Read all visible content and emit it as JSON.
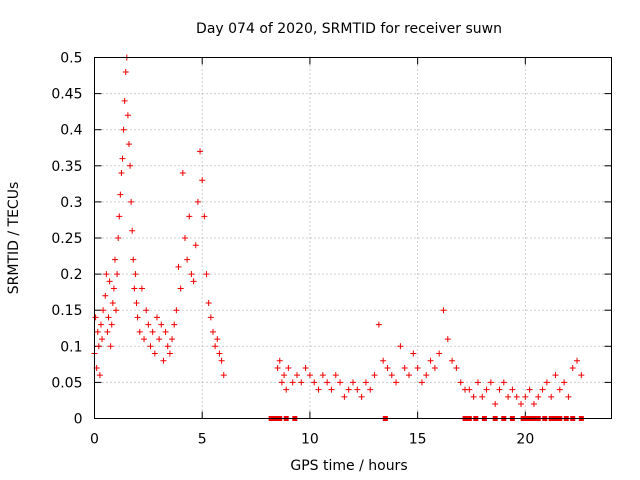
{
  "chart_data": {
    "type": "scatter",
    "title": "Day 074 of 2020, SRMTID for receiver suwn",
    "xlabel": "GPS time / hours",
    "ylabel": "SRMTID / TECUs",
    "xlim": [
      0,
      24
    ],
    "ylim": [
      0,
      0.5
    ],
    "xticks": [
      0,
      5,
      10,
      15,
      20
    ],
    "xtick_labels": [
      "0",
      "5",
      "10",
      "15",
      "20"
    ],
    "yticks": [
      0,
      0.05,
      0.1,
      0.15,
      0.2,
      0.25,
      0.3,
      0.35,
      0.4,
      0.45,
      0.5
    ],
    "ytick_labels": [
      "0",
      "0.05",
      "0.1",
      "0.15",
      "0.2",
      "0.25",
      "0.3",
      "0.35",
      "0.4",
      "0.45",
      "0.5"
    ],
    "grid": true,
    "series": [
      {
        "name": "SRMTID",
        "marker": "plus",
        "color": "#ee0000",
        "x": [
          0.0,
          0.05,
          0.1,
          0.15,
          0.2,
          0.25,
          0.3,
          0.35,
          0.4,
          0.5,
          0.55,
          0.6,
          0.65,
          0.7,
          0.75,
          0.8,
          0.85,
          0.9,
          0.95,
          1.0,
          1.05,
          1.1,
          1.15,
          1.2,
          1.25,
          1.3,
          1.35,
          1.4,
          1.45,
          1.5,
          1.55,
          1.6,
          1.65,
          1.7,
          1.75,
          1.8,
          1.85,
          1.9,
          1.95,
          2.0,
          2.1,
          2.2,
          2.3,
          2.4,
          2.5,
          2.6,
          2.7,
          2.8,
          2.9,
          3.0,
          3.1,
          3.2,
          3.3,
          3.4,
          3.5,
          3.6,
          3.7,
          3.8,
          3.9,
          4.0,
          4.1,
          4.2,
          4.3,
          4.4,
          4.5,
          4.6,
          4.7,
          4.8,
          4.9,
          5.0,
          5.1,
          5.2,
          5.3,
          5.4,
          5.5,
          5.6,
          5.7,
          5.8,
          5.9,
          6.0,
          8.5,
          8.6,
          8.7,
          8.8,
          8.9,
          9.0,
          9.2,
          9.4,
          9.6,
          9.8,
          10.0,
          10.2,
          10.4,
          10.6,
          10.8,
          11.0,
          11.2,
          11.4,
          11.6,
          11.8,
          12.0,
          12.2,
          12.4,
          12.6,
          12.8,
          13.0,
          13.2,
          13.4,
          13.6,
          13.8,
          14.0,
          14.2,
          14.4,
          14.6,
          14.8,
          15.0,
          15.2,
          15.4,
          15.6,
          15.8,
          16.0,
          16.2,
          16.4,
          16.6,
          16.8,
          17.0,
          17.2,
          17.4,
          17.6,
          17.8,
          18.0,
          18.2,
          18.4,
          18.6,
          18.8,
          19.0,
          19.2,
          19.4,
          19.6,
          19.8,
          20.0,
          20.2,
          20.4,
          20.6,
          20.8,
          21.0,
          21.2,
          21.4,
          21.6,
          21.8,
          22.0,
          22.2,
          22.4,
          22.6
        ],
        "y": [
          0.09,
          0.14,
          0.07,
          0.12,
          0.1,
          0.06,
          0.13,
          0.11,
          0.15,
          0.17,
          0.2,
          0.12,
          0.14,
          0.19,
          0.1,
          0.13,
          0.16,
          0.18,
          0.22,
          0.15,
          0.2,
          0.25,
          0.28,
          0.31,
          0.34,
          0.36,
          0.4,
          0.44,
          0.48,
          0.5,
          0.42,
          0.38,
          0.35,
          0.3,
          0.26,
          0.22,
          0.18,
          0.2,
          0.16,
          0.14,
          0.12,
          0.18,
          0.11,
          0.15,
          0.13,
          0.1,
          0.12,
          0.09,
          0.14,
          0.11,
          0.13,
          0.08,
          0.12,
          0.1,
          0.09,
          0.11,
          0.13,
          0.15,
          0.21,
          0.18,
          0.34,
          0.25,
          0.22,
          0.28,
          0.2,
          0.19,
          0.24,
          0.3,
          0.37,
          0.33,
          0.28,
          0.2,
          0.16,
          0.14,
          0.12,
          0.1,
          0.11,
          0.09,
          0.08,
          0.06,
          0.07,
          0.08,
          0.05,
          0.06,
          0.04,
          0.07,
          0.05,
          0.06,
          0.05,
          0.07,
          0.06,
          0.05,
          0.04,
          0.06,
          0.05,
          0.04,
          0.06,
          0.05,
          0.03,
          0.04,
          0.05,
          0.04,
          0.03,
          0.05,
          0.04,
          0.06,
          0.13,
          0.08,
          0.07,
          0.06,
          0.05,
          0.1,
          0.07,
          0.06,
          0.09,
          0.07,
          0.05,
          0.06,
          0.08,
          0.07,
          0.09,
          0.15,
          0.11,
          0.08,
          0.07,
          0.05,
          0.04,
          0.04,
          0.03,
          0.05,
          0.03,
          0.04,
          0.05,
          0.02,
          0.04,
          0.05,
          0.03,
          0.04,
          0.03,
          0.02,
          0.03,
          0.04,
          0.02,
          0.03,
          0.04,
          0.05,
          0.03,
          0.06,
          0.04,
          0.05,
          0.03,
          0.07,
          0.08,
          0.06
        ]
      }
    ],
    "zero_markers": {
      "marker": "square",
      "color": "#ee0000",
      "x": [
        8.2,
        8.4,
        8.6,
        8.9,
        9.3,
        13.5,
        17.2,
        17.4,
        17.7,
        18.1,
        18.6,
        19.0,
        19.4,
        19.9,
        20.0,
        20.2,
        20.4,
        20.6,
        20.9,
        21.2,
        21.4,
        21.6,
        21.9,
        22.2,
        22.6
      ],
      "y_value": 0
    }
  }
}
